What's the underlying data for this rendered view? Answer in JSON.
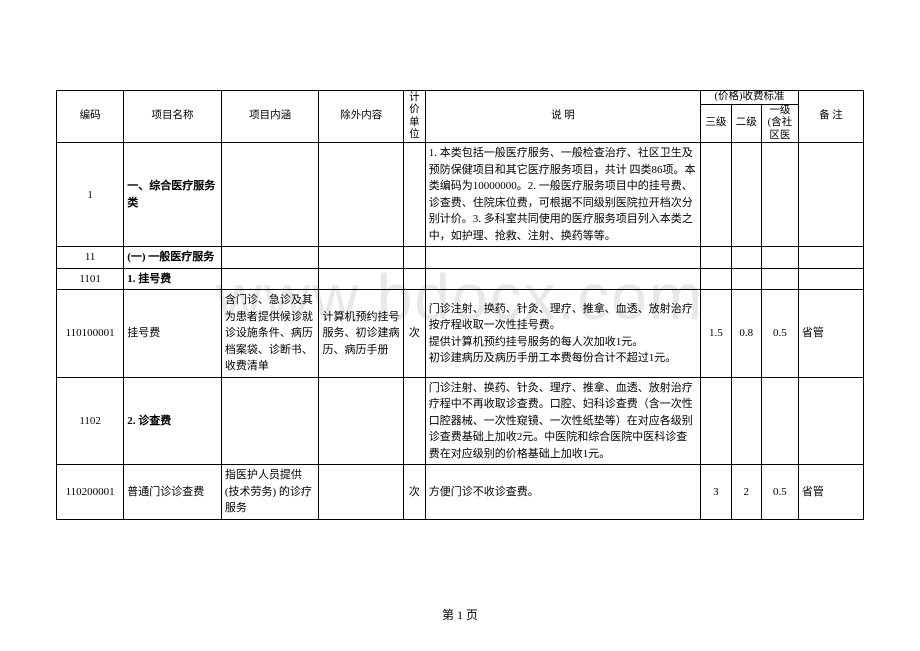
{
  "watermark": "www.bdocx.com",
  "pageNumber": "第 1 页",
  "headers": {
    "code": "编码",
    "name": "项目名称",
    "connotation": "项目内涵",
    "exclude": "除外内容",
    "unit": "计价单位",
    "desc": "说    明",
    "priceGroup": "(价格)收费标准",
    "level3": "三级",
    "level2": "二级",
    "level1": "一级(含社区医",
    "note": "备   注"
  },
  "rows": [
    {
      "code": "1",
      "name": "一、综合医疗服务类",
      "nameBold": true,
      "connotation": "",
      "exclude": "",
      "unit": "",
      "desc": "1. 本类包括一般医疗服务、一般检查治疗、社区卫生及预防保健项目和其它医疗服务项目，共计  四类86项。本类编码为10000000。2. 一般医疗服务项目中的挂号费、诊查费、住院床位费，可根据不同级别医院拉开档次分别计价。3. 多科室共同使用的医疗服务项目列入本类之中，如护理、抢救、注射、换药等等。",
      "l3": "",
      "l2": "",
      "l1": "",
      "note": ""
    },
    {
      "code": "11",
      "name": "(一) 一般医疗服务",
      "nameBold": true,
      "connotation": "",
      "exclude": "",
      "unit": "",
      "desc": "",
      "l3": "",
      "l2": "",
      "l1": "",
      "note": ""
    },
    {
      "code": "1101",
      "name": "1. 挂号费",
      "nameBold": true,
      "connotation": "",
      "exclude": "",
      "unit": "",
      "desc": "",
      "l3": "",
      "l2": "",
      "l1": "",
      "note": ""
    },
    {
      "code": "110100001",
      "name": "挂号费",
      "nameBold": false,
      "connotation": "含门诊、急诊及其为患者提供候诊就诊设施条件、病历档案袋、诊断书、收费清单",
      "exclude": "计算机预约挂号服务、初诊建病历、病历手册",
      "unit": "次",
      "desc": "门诊注射、换药、针灸、理疗、推拿、血透、放射治疗按疗程收取一次性挂号费。\n提供计算机预约挂号服务的每人次加收1元。\n初诊建病历及病历手册工本费每份合计不超过1元。",
      "l3": "1.5",
      "l2": "0.8",
      "l1": "0.5",
      "note": "省管"
    },
    {
      "code": "1102",
      "name": "2. 诊查费",
      "nameBold": true,
      "connotation": "",
      "exclude": "",
      "unit": "",
      "desc": "门诊注射、换药、针灸、理疗、推拿、血透、放射治疗疗程中不再收取诊查费。口腔、妇科诊查费（含一次性口腔器械、一次性窥镜、一次性纸垫等）在对应各级别诊查费基础上加收2元。中医院和综合医院中医科诊查费在对应级别的价格基础上加收1元。",
      "l3": "",
      "l2": "",
      "l1": "",
      "note": ""
    },
    {
      "code": "110200001",
      "name": "普通门诊诊查费",
      "nameBold": false,
      "connotation": "指医护人员提供 (技术劳务) 的诊疗服务",
      "exclude": "",
      "unit": "次",
      "desc": "方便门诊不收诊查费。",
      "l3": "3",
      "l2": "2",
      "l1": "0.5",
      "note": "省管"
    }
  ]
}
